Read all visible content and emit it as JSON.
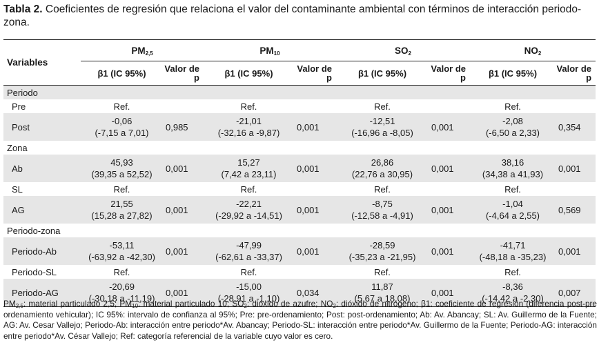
{
  "caption": {
    "label": "Tabla 2.",
    "text": "Coeficientes de regresión que relaciona el valor del contaminante ambiental con términos de interacción periodo-zona."
  },
  "header": {
    "variables": "Variables",
    "groups": [
      {
        "base": "PM",
        "sub": "2,5"
      },
      {
        "base": "PM",
        "sub": "10"
      },
      {
        "base": "SO",
        "sub": "2"
      },
      {
        "base": "NO",
        "sub": "2"
      }
    ],
    "beta": "β1 (IC 95%)",
    "pvalue": "Valor de p"
  },
  "sections": {
    "periodo": "Periodo",
    "zona": "Zona",
    "periodo_zona": "Periodo-zona"
  },
  "rows": {
    "pre": {
      "name": "Pre",
      "ref": [
        "Ref.",
        "Ref.",
        "Ref.",
        "Ref."
      ]
    },
    "post": {
      "name": "Post",
      "cells": [
        {
          "b": "-0,06",
          "ci": "(-7,15 a 7,01)",
          "p": "0,985"
        },
        {
          "b": "-21,01",
          "ci": "(-32,16 a -9,87)",
          "p": "0,001"
        },
        {
          "b": "-12,51",
          "ci": "(-16,96 a -8,05)",
          "p": "0,001"
        },
        {
          "b": "-2,08",
          "ci": "(-6,50 a 2,33)",
          "p": "0,354"
        }
      ]
    },
    "ab": {
      "name": "Ab",
      "cells": [
        {
          "b": "45,93",
          "ci": "(39,35 a 52,52)",
          "p": "0,001"
        },
        {
          "b": "15,27",
          "ci": "(7,42 a 23,11)",
          "p": "0,001"
        },
        {
          "b": "26,86",
          "ci": "(22,76 a 30,95)",
          "p": "0,001"
        },
        {
          "b": "38,16",
          "ci": "(34,38 a 41,93)",
          "p": "0,001"
        }
      ]
    },
    "sl": {
      "name": "SL",
      "ref": [
        "Ref.",
        "Ref.",
        "Ref.",
        "Ref."
      ]
    },
    "ag": {
      "name": "AG",
      "cells": [
        {
          "b": "21,55",
          "ci": "(15,28 a 27,82)",
          "p": "0,001"
        },
        {
          "b": "-22,21",
          "ci": "(-29,92 a -14,51)",
          "p": "0,001"
        },
        {
          "b": "-8,75",
          "ci": "(-12,58 a -4,91)",
          "p": "0,001"
        },
        {
          "b": "-1,04",
          "ci": "(-4,64 a 2,55)",
          "p": "0,569"
        }
      ]
    },
    "pab": {
      "name": "Periodo-Ab",
      "cells": [
        {
          "b": "-53,11",
          "ci": "(-63,92 a -42,30)",
          "p": "0,001"
        },
        {
          "b": "-47,99",
          "ci": "(-62,61 a -33,37)",
          "p": "0,001"
        },
        {
          "b": "-28,59",
          "ci": "(-35,23 a -21,95)",
          "p": "0,001"
        },
        {
          "b": "-41,71",
          "ci": "(-48,18 a -35,23)",
          "p": "0,001"
        }
      ]
    },
    "psl": {
      "name": "Periodo-SL",
      "ref": [
        "Ref.",
        "Ref.",
        "Ref.",
        "Ref."
      ]
    },
    "pag": {
      "name": "Periodo-AG",
      "cells": [
        {
          "b": "-20,69",
          "ci": "(-30,18 a -11,19)",
          "p": "0,001"
        },
        {
          "b": "-15,00",
          "ci": "(-28,91 a -1,10)",
          "p": "0,034"
        },
        {
          "b": "11,87",
          "ci": "(5,67 a 18,08)",
          "p": "0,001"
        },
        {
          "b": "-8,36",
          "ci": "(-14,42 a -2,30)",
          "p": "0,007"
        }
      ]
    }
  },
  "footnote": {
    "pm25_sub": "2,5",
    "pm25_text": ": material particulado 2,5; PM",
    "pm10_sub": "10",
    "pm10_text": ": material particulado 10; SO",
    "so2_sub": "2",
    "so2_text": ": dióxido de azufre; NO",
    "no2_sub": "2",
    "rest": ": dióxido de nitrógeno; β1: coeficiente de regresión (diferencia post-pre ordenamiento vehicular); IC 95%: intervalo de confianza al 95%; Pre: pre-ordenamiento; Post: post-ordenamiento; Ab: Av. Abancay; SL: Av. Guillermo de la Fuente; AG: Av. Cesar Vallejo; Periodo-Ab: interacción entre periodo*Av. Abancay; Periodo-SL: interacción entre periodo*Av. Guillermo de la Fuente; Periodo-AG: interacción entre periodo*Av. César Vallejo; Ref: categoría referencial de la variable cuyo valor es cero.",
    "lead": "PM"
  }
}
